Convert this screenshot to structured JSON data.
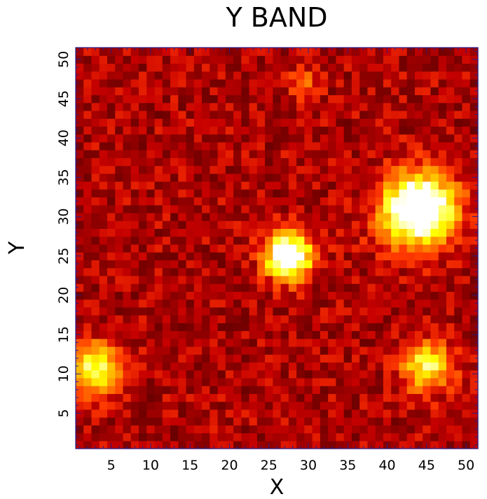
{
  "chart_data": {
    "type": "heatmap",
    "title": "Y BAND",
    "xlabel": "X",
    "ylabel": "Y",
    "xlim": [
      0.5,
      51.5
    ],
    "ylim": [
      0.5,
      51.5
    ],
    "x_ticks": [
      5,
      10,
      15,
      20,
      25,
      30,
      35,
      40,
      45,
      50
    ],
    "y_ticks": [
      5,
      10,
      15,
      20,
      25,
      30,
      35,
      40,
      45,
      50
    ],
    "grid": false,
    "colormap": "hot",
    "grid_size": [
      51,
      51
    ],
    "background_level": 0.3,
    "sources": [
      {
        "x": 44.0,
        "y": 31.0,
        "peak": 1.0,
        "sigma": 3.2
      },
      {
        "x": 27.5,
        "y": 25.0,
        "peak": 0.98,
        "sigma": 2.0
      },
      {
        "x": 3.0,
        "y": 10.5,
        "peak": 0.6,
        "sigma": 2.3
      },
      {
        "x": 45.0,
        "y": 11.0,
        "peak": 0.55,
        "sigma": 2.2
      },
      {
        "x": 29.5,
        "y": 47.0,
        "peak": 0.2,
        "sigma": 1.3
      }
    ]
  },
  "colors": {
    "frame": "#2a1d8a",
    "background": "#ffffff"
  }
}
